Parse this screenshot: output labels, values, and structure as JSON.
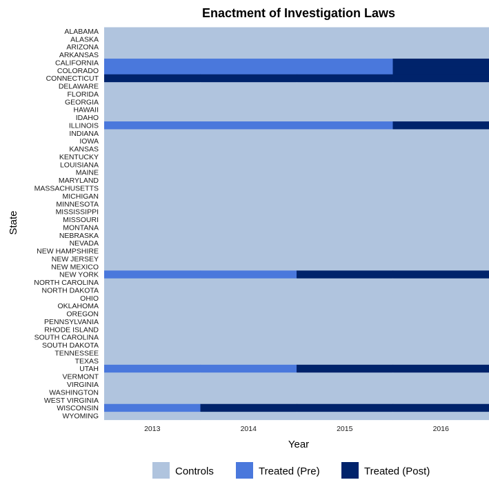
{
  "chart_data": {
    "type": "heatmap",
    "title": "Enactment of Investigation Laws",
    "xlabel": "Year",
    "ylabel": "State",
    "x": [
      "2013",
      "2014",
      "2015",
      "2016"
    ],
    "states": [
      "ALABAMA",
      "ALASKA",
      "ARIZONA",
      "ARKANSAS",
      "CALIFORNIA",
      "COLORADO",
      "CONNECTICUT",
      "DELAWARE",
      "FLORIDA",
      "GEORGIA",
      "HAWAII",
      "IDAHO",
      "ILLINOIS",
      "INDIANA",
      "IOWA",
      "KANSAS",
      "KENTUCKY",
      "LOUISIANA",
      "MAINE",
      "MARYLAND",
      "MASSACHUSETTS",
      "MICHIGAN",
      "MINNESOTA",
      "MISSISSIPPI",
      "MISSOURI",
      "MONTANA",
      "NEBRASKA",
      "NEVADA",
      "NEW HAMPSHIRE",
      "NEW JERSEY",
      "NEW MEXICO",
      "NEW YORK",
      "NORTH CAROLINA",
      "NORTH DAKOTA",
      "OHIO",
      "OKLAHOMA",
      "OREGON",
      "PENNSYLVANIA",
      "RHODE ISLAND",
      "SOUTH CAROLINA",
      "SOUTH DAKOTA",
      "TENNESSEE",
      "TEXAS",
      "UTAH",
      "VERMONT",
      "VIRGINIA",
      "WASHINGTON",
      "WEST VIRGINIA",
      "WISCONSIN",
      "WYOMING"
    ],
    "status": {
      "CALIFORNIA": [
        "Treated (Pre)",
        "Treated (Pre)",
        "Treated (Pre)",
        "Treated (Post)"
      ],
      "COLORADO": [
        "Treated (Pre)",
        "Treated (Pre)",
        "Treated (Pre)",
        "Treated (Post)"
      ],
      "CONNECTICUT": [
        "Treated (Post)",
        "Treated (Post)",
        "Treated (Post)",
        "Treated (Post)"
      ],
      "ILLINOIS": [
        "Treated (Pre)",
        "Treated (Pre)",
        "Treated (Pre)",
        "Treated (Post)"
      ],
      "NEW YORK": [
        "Treated (Pre)",
        "Treated (Pre)",
        "Treated (Post)",
        "Treated (Post)"
      ],
      "UTAH": [
        "Treated (Pre)",
        "Treated (Pre)",
        "Treated (Post)",
        "Treated (Post)"
      ],
      "WISCONSIN": [
        "Treated (Pre)",
        "Treated (Post)",
        "Treated (Post)",
        "Treated (Post)"
      ]
    },
    "default_status": "Controls",
    "legend": {
      "placement": "bottom",
      "items": [
        {
          "label": "Controls",
          "color": "#b0c4de"
        },
        {
          "label": "Treated (Pre)",
          "color": "#4a78dc"
        },
        {
          "label": "Treated (Post)",
          "color": "#00236b"
        }
      ]
    },
    "grid": false
  }
}
